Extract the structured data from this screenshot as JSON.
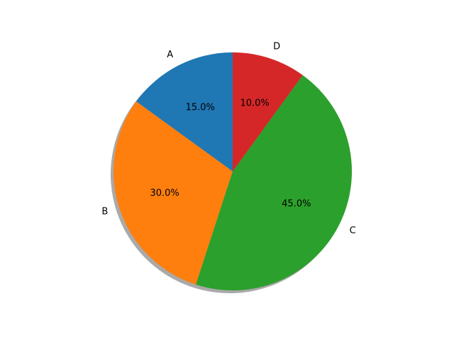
{
  "chart_data": {
    "type": "pie",
    "categories": [
      "A",
      "B",
      "C",
      "D"
    ],
    "values": [
      15,
      30,
      45,
      10
    ],
    "value_labels": [
      "15.0%",
      "30.0%",
      "45.0%",
      "10.0%"
    ],
    "colors": [
      "#1f77b4",
      "#ff7f0e",
      "#2ca02c",
      "#d62728"
    ],
    "start_angle": 90,
    "shadow": true
  }
}
